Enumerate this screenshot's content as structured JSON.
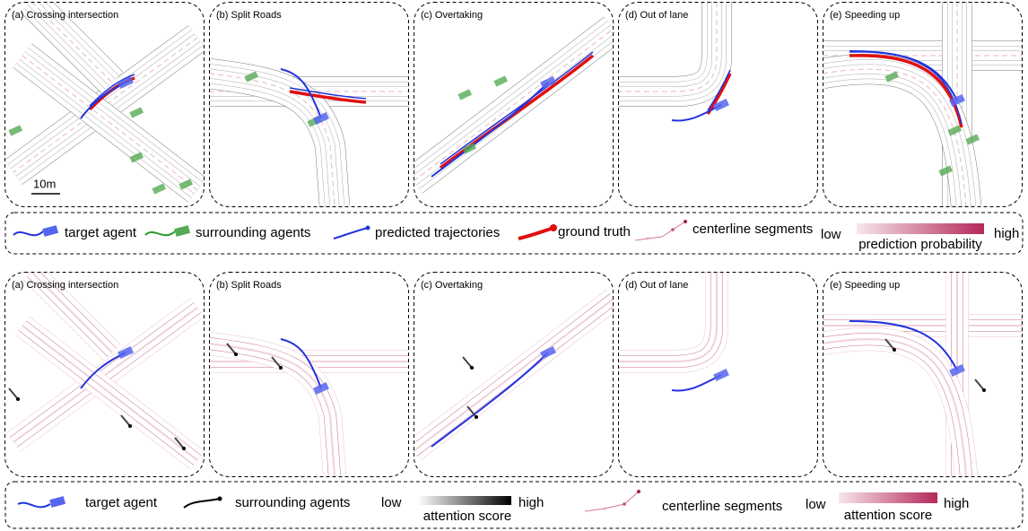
{
  "top_panels": [
    {
      "label": "(a) Crossing intersection"
    },
    {
      "label": "(b) Split Roads"
    },
    {
      "label": "(c) Overtaking"
    },
    {
      "label": "(d) Out of lane"
    },
    {
      "label": "(e) Speeding up"
    }
  ],
  "scale_label": "10m",
  "top_legend": {
    "target": "target agent",
    "surrounding": "surrounding agents",
    "predicted": "predicted trajectories",
    "ground_truth": "ground truth",
    "centerline": "centerline segments",
    "low": "low",
    "high": "high",
    "gradient_label": "prediction probability"
  },
  "bottom_panels": [
    {
      "label": "(a) Crossing intersection"
    },
    {
      "label": "(b) Split Roads"
    },
    {
      "label": "(c) Overtaking"
    },
    {
      "label": "(d) Out of lane"
    },
    {
      "label": "(e) Speeding up"
    }
  ],
  "bottom_legend": {
    "target": "target agent",
    "surrounding": "surrounding agents",
    "agent_low": "low",
    "agent_high": "high",
    "agent_gradient_label": "attention score",
    "centerline": "centerline segments",
    "center_low": "low",
    "center_high": "high",
    "center_gradient_label": "attention score"
  }
}
